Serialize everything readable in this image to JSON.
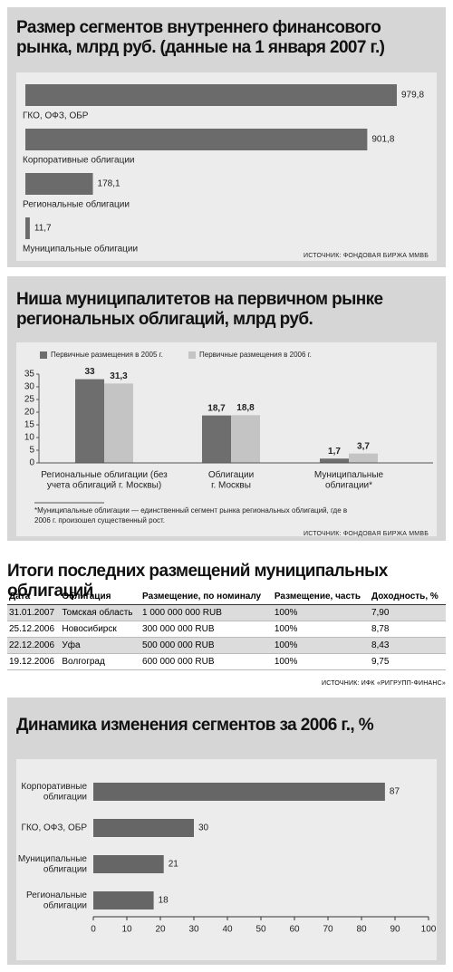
{
  "chart_data": [
    {
      "type": "bar",
      "orientation": "horizontal",
      "title": "Размер сегментов внутреннего финансового рынка, млрд руб. (данные на 1 января 2007 г.)",
      "categories": [
        "ГКО, ОФЗ, ОБР",
        "Корпоративные облигации",
        "Региональные облигации",
        "Муниципальные облигации"
      ],
      "values": [
        979.8,
        901.8,
        178.1,
        11.7
      ],
      "value_labels": [
        "979,8",
        "901,8",
        "178,1",
        "11,7"
      ],
      "color": "#6b6b6b",
      "source": "ИСТОЧНИК: ФОНДОВАЯ БИРЖА ММВБ"
    },
    {
      "type": "bar",
      "orientation": "vertical",
      "title": "Ниша муниципалитетов на первичном рынке региональных облигаций, млрд руб.",
      "categories": [
        "Региональные облигации (без\nучета облигаций г. Москвы)",
        "Облигации\nг. Москвы",
        "Муниципальные\nоблигации*"
      ],
      "series": [
        {
          "name": "Первичные размещения в 2005 г.",
          "color": "#6e6e6e",
          "values": [
            33,
            18.7,
            1.7
          ],
          "value_labels": [
            "33",
            "18,7",
            "1,7"
          ]
        },
        {
          "name": "Первичные размещения в 2006 г.",
          "color": "#c4c4c4",
          "values": [
            31.3,
            18.8,
            3.7
          ],
          "value_labels": [
            "31,3",
            "18,8",
            "3,7"
          ]
        }
      ],
      "ylim": [
        0,
        35
      ],
      "yticks": [
        0,
        5,
        10,
        15,
        20,
        25,
        30,
        35
      ],
      "note": "*Муниципальные облигации — единственный сегмент рынка региональных облигаций, где в 2006 г. произошел существенный рост.",
      "source": "ИСТОЧНИК: ФОНДОВАЯ БИРЖА ММВБ"
    },
    {
      "type": "bar",
      "orientation": "horizontal",
      "title": "Динамика изменения сегментов за 2006 г., %",
      "categories": [
        "Корпоративные\nоблигации",
        "ГКО, ОФЗ, ОБР",
        "Муниципальные\nоблигации",
        "Региональные\nоблигации"
      ],
      "values": [
        87,
        30,
        21,
        18
      ],
      "color": "#666666",
      "xlim": [
        0,
        100
      ],
      "xticks": [
        0,
        10,
        20,
        30,
        40,
        50,
        60,
        70,
        80,
        90,
        100
      ]
    }
  ],
  "table": {
    "title": "Итоги последних размещений муниципальных облигаций",
    "columns": [
      "Дата",
      "Облигация",
      "Размещение, по номиналу",
      "Размещение, часть",
      "Доходность, %"
    ],
    "rows": [
      [
        "31.01.2007",
        "Томская область",
        "1 000 000 000 RUB",
        "100%",
        "7,90"
      ],
      [
        "25.12.2006",
        "Новосибирск",
        "300 000 000 RUB",
        "100%",
        "8,78"
      ],
      [
        "22.12.2006",
        "Уфа",
        "500 000 000 RUB",
        "100%",
        "8,43"
      ],
      [
        "19.12.2006",
        "Волгоград",
        "600 000 000 RUB",
        "100%",
        "9,75"
      ]
    ],
    "source": "ИСТОЧНИК: ИФК «РИГРУПП-ФИНАНС»"
  }
}
